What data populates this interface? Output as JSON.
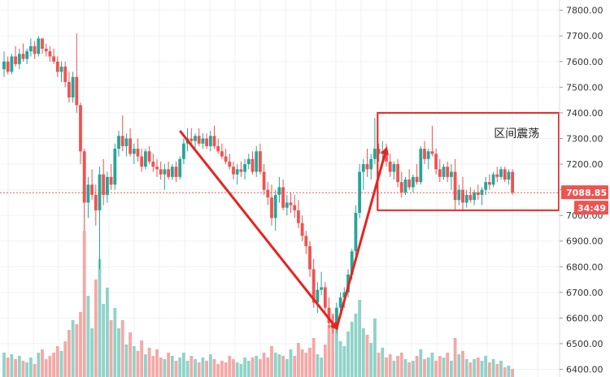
{
  "chart_data": {
    "type": "candlestick",
    "grid": true,
    "ylim": [
      6370,
      7840
    ],
    "y_ticks": [
      "7800.00",
      "7700.00",
      "7600.00",
      "7500.00",
      "7400.00",
      "7300.00",
      "7200.00",
      "7100.00",
      "7000.00",
      "6900.00",
      "6800.00",
      "6700.00",
      "6600.00",
      "6500.00",
      "6400.00"
    ],
    "y_tick_values": [
      7800,
      7700,
      7600,
      7500,
      7400,
      7300,
      7200,
      7100,
      7000,
      6900,
      6800,
      6700,
      6600,
      6500,
      6400
    ],
    "current_price": 7088.85,
    "current_price_label": "7088.85",
    "countdown_label": "34:49",
    "annotation": "区间震荡",
    "colors": {
      "up": "#26a69a",
      "down": "#ef5350",
      "up_volume": "#8fd3c8",
      "down_volume": "#f3a9a6",
      "arrow": "#e8231f",
      "grid": "#eef2f5",
      "price_line": "#ef5350"
    },
    "candles": [
      [
        7570,
        7640,
        7540,
        7600
      ],
      [
        7600,
        7620,
        7550,
        7560
      ],
      [
        7560,
        7630,
        7550,
        7620
      ],
      [
        7620,
        7660,
        7580,
        7590
      ],
      [
        7590,
        7650,
        7570,
        7630
      ],
      [
        7630,
        7670,
        7600,
        7610
      ],
      [
        7610,
        7650,
        7590,
        7640
      ],
      [
        7640,
        7690,
        7620,
        7660
      ],
      [
        7660,
        7680,
        7610,
        7630
      ],
      [
        7630,
        7700,
        7620,
        7690
      ],
      [
        7690,
        7690,
        7630,
        7650
      ],
      [
        7650,
        7670,
        7620,
        7640
      ],
      [
        7640,
        7660,
        7600,
        7620
      ],
      [
        7620,
        7650,
        7590,
        7600
      ],
      [
        7600,
        7620,
        7540,
        7560
      ],
      [
        7560,
        7600,
        7520,
        7580
      ],
      [
        7580,
        7600,
        7500,
        7520
      ],
      [
        7520,
        7560,
        7440,
        7460
      ],
      [
        7460,
        7560,
        7440,
        7540
      ],
      [
        7540,
        7710,
        7400,
        7430
      ],
      [
        7430,
        7440,
        7200,
        7250
      ],
      [
        7250,
        7260,
        6940,
        7050
      ],
      [
        7050,
        7150,
        6990,
        7120
      ],
      [
        7120,
        7180,
        7060,
        7080
      ],
      [
        7080,
        7120,
        6960,
        7020
      ],
      [
        7020,
        7190,
        6790,
        7160
      ],
      [
        7160,
        7220,
        7040,
        7080
      ],
      [
        7080,
        7170,
        7050,
        7150
      ],
      [
        7150,
        7200,
        7100,
        7120
      ],
      [
        7120,
        7280,
        7100,
        7260
      ],
      [
        7260,
        7330,
        7230,
        7310
      ],
      [
        7310,
        7390,
        7250,
        7270
      ],
      [
        7270,
        7320,
        7230,
        7300
      ],
      [
        7300,
        7340,
        7230,
        7240
      ],
      [
        7240,
        7280,
        7200,
        7260
      ],
      [
        7260,
        7300,
        7210,
        7230
      ],
      [
        7230,
        7260,
        7170,
        7190
      ],
      [
        7190,
        7260,
        7180,
        7250
      ],
      [
        7250,
        7270,
        7200,
        7210
      ],
      [
        7210,
        7240,
        7170,
        7190
      ],
      [
        7190,
        7220,
        7150,
        7180
      ],
      [
        7180,
        7210,
        7140,
        7160
      ],
      [
        7160,
        7200,
        7100,
        7180
      ],
      [
        7180,
        7210,
        7140,
        7150
      ],
      [
        7150,
        7200,
        7140,
        7190
      ],
      [
        7190,
        7210,
        7130,
        7150
      ],
      [
        7150,
        7230,
        7140,
        7220
      ],
      [
        7220,
        7300,
        7200,
        7280
      ],
      [
        7280,
        7340,
        7250,
        7300
      ],
      [
        7300,
        7340,
        7270,
        7290
      ],
      [
        7290,
        7320,
        7260,
        7310
      ],
      [
        7310,
        7340,
        7270,
        7280
      ],
      [
        7280,
        7320,
        7260,
        7300
      ],
      [
        7300,
        7320,
        7260,
        7270
      ],
      [
        7270,
        7330,
        7250,
        7310
      ],
      [
        7310,
        7350,
        7260,
        7270
      ],
      [
        7270,
        7300,
        7240,
        7250
      ],
      [
        7250,
        7280,
        7220,
        7230
      ],
      [
        7230,
        7260,
        7200,
        7210
      ],
      [
        7210,
        7240,
        7180,
        7190
      ],
      [
        7190,
        7210,
        7140,
        7160
      ],
      [
        7160,
        7200,
        7120,
        7180
      ],
      [
        7180,
        7210,
        7150,
        7170
      ],
      [
        7170,
        7220,
        7140,
        7200
      ],
      [
        7200,
        7240,
        7180,
        7220
      ],
      [
        7220,
        7250,
        7160,
        7170
      ],
      [
        7170,
        7270,
        7150,
        7250
      ],
      [
        7250,
        7280,
        7160,
        7170
      ],
      [
        7170,
        7200,
        7080,
        7100
      ],
      [
        7100,
        7130,
        7040,
        7070
      ],
      [
        7070,
        7120,
        6960,
        6990
      ],
      [
        6990,
        7100,
        6940,
        7080
      ],
      [
        7080,
        7150,
        7050,
        7110
      ],
      [
        7110,
        7140,
        7020,
        7030
      ],
      [
        7030,
        7080,
        7000,
        7050
      ],
      [
        7050,
        7090,
        7010,
        7040
      ],
      [
        7040,
        7080,
        6990,
        7020
      ],
      [
        7020,
        7060,
        6950,
        6970
      ],
      [
        6970,
        7000,
        6900,
        6920
      ],
      [
        6920,
        6940,
        6850,
        6880
      ],
      [
        6880,
        6900,
        6760,
        6790
      ],
      [
        6790,
        6830,
        6640,
        6660
      ],
      [
        6660,
        6740,
        6620,
        6710
      ],
      [
        6710,
        6780,
        6690,
        6720
      ],
      [
        6720,
        6740,
        6620,
        6640
      ],
      [
        6640,
        6680,
        6560,
        6580
      ],
      [
        6580,
        6610,
        6540,
        6560
      ],
      [
        6560,
        6660,
        6540,
        6640
      ],
      [
        6640,
        6700,
        6620,
        6680
      ],
      [
        6680,
        6720,
        6640,
        6700
      ],
      [
        6700,
        6790,
        6680,
        6770
      ],
      [
        6770,
        6870,
        6750,
        6860
      ],
      [
        6860,
        7040,
        6840,
        7010
      ],
      [
        7010,
        7200,
        6990,
        7170
      ],
      [
        7170,
        7220,
        7100,
        7200
      ],
      [
        7200,
        7260,
        7150,
        7180
      ],
      [
        7180,
        7240,
        7140,
        7220
      ],
      [
        7220,
        7380,
        7200,
        7260
      ],
      [
        7260,
        7280,
        7210,
        7240
      ],
      [
        7240,
        7290,
        7220,
        7250
      ],
      [
        7250,
        7280,
        7190,
        7210
      ],
      [
        7210,
        7240,
        7150,
        7170
      ],
      [
        7170,
        7210,
        7140,
        7200
      ],
      [
        7200,
        7220,
        7110,
        7130
      ],
      [
        7130,
        7170,
        7070,
        7090
      ],
      [
        7090,
        7150,
        7080,
        7140
      ],
      [
        7140,
        7180,
        7100,
        7110
      ],
      [
        7110,
        7160,
        7090,
        7150
      ],
      [
        7150,
        7200,
        7120,
        7130
      ],
      [
        7130,
        7270,
        7120,
        7260
      ],
      [
        7260,
        7290,
        7200,
        7220
      ],
      [
        7220,
        7260,
        7180,
        7250
      ],
      [
        7250,
        7350,
        7230,
        7240
      ],
      [
        7240,
        7260,
        7160,
        7180
      ],
      [
        7180,
        7220,
        7130,
        7150
      ],
      [
        7150,
        7200,
        7140,
        7190
      ],
      [
        7190,
        7210,
        7130,
        7150
      ],
      [
        7150,
        7200,
        7100,
        7170
      ],
      [
        7170,
        7220,
        7020,
        7060
      ],
      [
        7060,
        7120,
        7040,
        7100
      ],
      [
        7100,
        7150,
        7020,
        7050
      ],
      [
        7050,
        7100,
        7030,
        7080
      ],
      [
        7080,
        7110,
        7050,
        7060
      ],
      [
        7060,
        7100,
        7040,
        7090
      ],
      [
        7090,
        7120,
        7060,
        7080
      ],
      [
        7080,
        7110,
        7040,
        7100
      ],
      [
        7100,
        7150,
        7080,
        7130
      ],
      [
        7130,
        7160,
        7100,
        7120
      ],
      [
        7120,
        7170,
        7110,
        7160
      ],
      [
        7160,
        7190,
        7130,
        7150
      ],
      [
        7150,
        7190,
        7140,
        7180
      ],
      [
        7180,
        7190,
        7130,
        7140
      ],
      [
        7140,
        7180,
        7120,
        7170
      ],
      [
        7170,
        7180,
        7080,
        7089
      ]
    ],
    "volumes": [
      [
        30,
        1
      ],
      [
        24,
        0
      ],
      [
        28,
        1
      ],
      [
        22,
        0
      ],
      [
        26,
        1
      ],
      [
        20,
        0
      ],
      [
        18,
        1
      ],
      [
        24,
        1
      ],
      [
        16,
        0
      ],
      [
        30,
        1
      ],
      [
        34,
        0
      ],
      [
        22,
        0
      ],
      [
        26,
        0
      ],
      [
        30,
        0
      ],
      [
        38,
        0
      ],
      [
        32,
        1
      ],
      [
        44,
        0
      ],
      [
        58,
        0
      ],
      [
        70,
        1
      ],
      [
        65,
        0
      ],
      [
        80,
        0
      ],
      [
        180,
        0
      ],
      [
        100,
        1
      ],
      [
        60,
        1
      ],
      [
        120,
        0
      ],
      [
        145,
        1
      ],
      [
        90,
        1
      ],
      [
        110,
        1
      ],
      [
        70,
        0
      ],
      [
        85,
        1
      ],
      [
        60,
        1
      ],
      [
        70,
        0
      ],
      [
        40,
        1
      ],
      [
        55,
        0
      ],
      [
        38,
        1
      ],
      [
        32,
        0
      ],
      [
        45,
        0
      ],
      [
        28,
        1
      ],
      [
        36,
        0
      ],
      [
        26,
        0
      ],
      [
        34,
        0
      ],
      [
        24,
        0
      ],
      [
        22,
        1
      ],
      [
        30,
        0
      ],
      [
        26,
        1
      ],
      [
        20,
        0
      ],
      [
        24,
        1
      ],
      [
        30,
        1
      ],
      [
        20,
        1
      ],
      [
        26,
        0
      ],
      [
        22,
        1
      ],
      [
        18,
        0
      ],
      [
        24,
        1
      ],
      [
        20,
        0
      ],
      [
        28,
        1
      ],
      [
        22,
        0
      ],
      [
        16,
        0
      ],
      [
        20,
        0
      ],
      [
        18,
        0
      ],
      [
        26,
        0
      ],
      [
        22,
        0
      ],
      [
        18,
        1
      ],
      [
        16,
        1
      ],
      [
        24,
        1
      ],
      [
        20,
        1
      ],
      [
        24,
        0
      ],
      [
        26,
        1
      ],
      [
        22,
        0
      ],
      [
        30,
        0
      ],
      [
        24,
        0
      ],
      [
        38,
        0
      ],
      [
        30,
        1
      ],
      [
        28,
        1
      ],
      [
        26,
        0
      ],
      [
        22,
        1
      ],
      [
        34,
        1
      ],
      [
        26,
        0
      ],
      [
        42,
        0
      ],
      [
        34,
        0
      ],
      [
        30,
        0
      ],
      [
        36,
        0
      ],
      [
        48,
        0
      ],
      [
        28,
        1
      ],
      [
        24,
        1
      ],
      [
        40,
        0
      ],
      [
        64,
        0
      ],
      [
        78,
        0
      ],
      [
        60,
        1
      ],
      [
        44,
        1
      ],
      [
        38,
        1
      ],
      [
        56,
        1
      ],
      [
        68,
        1
      ],
      [
        78,
        1
      ],
      [
        95,
        1
      ],
      [
        60,
        1
      ],
      [
        52,
        0
      ],
      [
        42,
        1
      ],
      [
        72,
        1
      ],
      [
        30,
        0
      ],
      [
        36,
        1
      ],
      [
        24,
        0
      ],
      [
        28,
        0
      ],
      [
        20,
        1
      ],
      [
        26,
        0
      ],
      [
        30,
        0
      ],
      [
        22,
        1
      ],
      [
        18,
        0
      ],
      [
        20,
        1
      ],
      [
        26,
        0
      ],
      [
        34,
        1
      ],
      [
        22,
        0
      ],
      [
        24,
        1
      ],
      [
        30,
        1
      ],
      [
        20,
        0
      ],
      [
        26,
        0
      ],
      [
        24,
        1
      ],
      [
        30,
        0
      ],
      [
        20,
        1
      ],
      [
        48,
        0
      ],
      [
        28,
        1
      ],
      [
        32,
        0
      ],
      [
        22,
        1
      ],
      [
        18,
        0
      ],
      [
        22,
        1
      ],
      [
        24,
        0
      ],
      [
        20,
        1
      ],
      [
        26,
        1
      ],
      [
        18,
        0
      ],
      [
        22,
        1
      ],
      [
        16,
        0
      ],
      [
        20,
        1
      ],
      [
        12,
        0
      ],
      [
        14,
        1
      ],
      [
        10,
        0
      ]
    ],
    "arrows": [
      {
        "from": [
          46,
          7330
        ],
        "to": [
          87,
          6560
        ]
      },
      {
        "from": [
          87,
          6560
        ],
        "to": [
          100,
          7260
        ]
      }
    ],
    "box": {
      "x_from": 99,
      "x_to": 140,
      "y_from": 7400,
      "y_to": 7020
    }
  }
}
